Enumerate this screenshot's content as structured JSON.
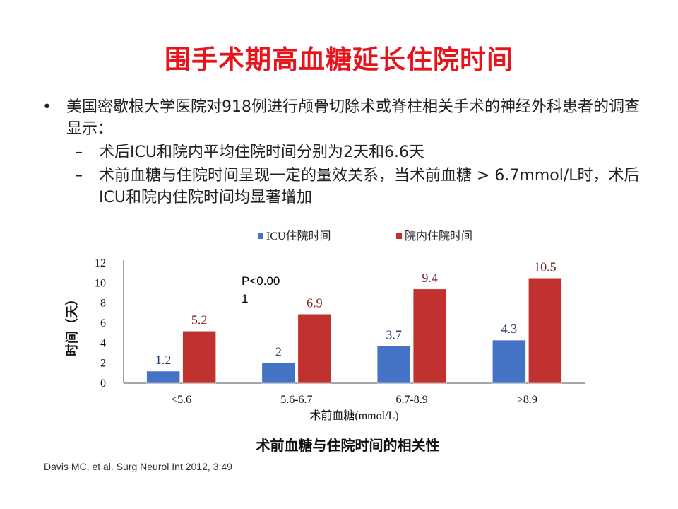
{
  "title": "围手术期高血糖延长住院时间",
  "bullets": {
    "main": "美国密歇根大学医院对918例进行颅骨切除术或脊柱相关手术的神经外科患者的调查显示：",
    "sub1": "术后ICU和院内平均住院时间分别为2天和6.6天",
    "sub2": "术前血糖与住院时间呈现一定的量效关系，当术前血糖 > 6.7mmol/L时，术后ICU和院内住院时间均显著增加"
  },
  "chart_data": {
    "type": "bar",
    "categories": [
      "<5.6",
      "5.6-6.7",
      "6.7-8.9",
      ">8.9"
    ],
    "series": [
      {
        "name": "ICU住院时间",
        "values": [
          1.2,
          2,
          3.7,
          4.3
        ],
        "color": "#4472c4",
        "label_color": "#1f3864"
      },
      {
        "name": "院内住院时间",
        "values": [
          5.2,
          6.9,
          9.4,
          10.5
        ],
        "color": "#c0312f",
        "label_color": "#7b2225"
      }
    ],
    "xlabel": "术前血糖(mmol/L)",
    "ylabel": "时间（天）",
    "ylim": [
      0,
      12
    ],
    "yticks": [
      0,
      2,
      4,
      6,
      8,
      10,
      12
    ],
    "annotation": "P<0.001",
    "legend_position": "top",
    "grid": false
  },
  "caption": "术前血糖与住院时间的相关性",
  "reference": "Davis MC, et al. Surg Neurol Int 2012, 3:49"
}
